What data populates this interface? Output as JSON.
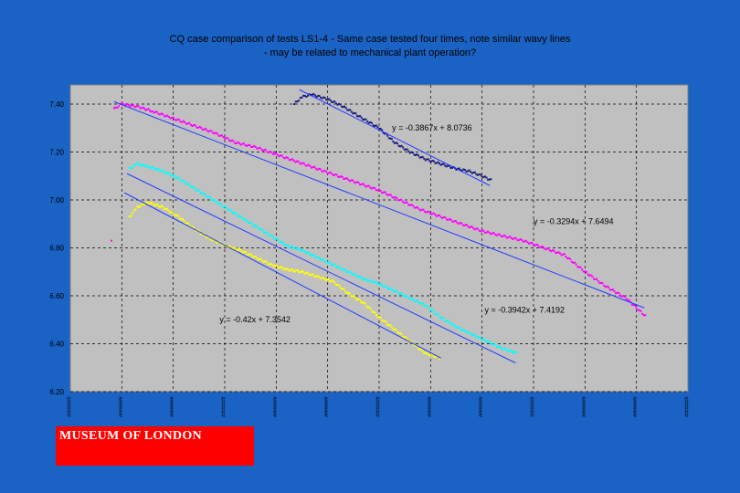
{
  "chart_data": {
    "type": "scatter",
    "title": "CQ case comparison of tests LS1-4 - Same case tested four times, note similar wavy lines",
    "subtitle": "- may be related to mechanical plant operation?",
    "xlabel": "",
    "ylabel": "",
    "ylim": [
      6.2,
      7.48
    ],
    "xlim": [
      0,
      12
    ],
    "yticks": [
      "7.40",
      "7.20",
      "7.00",
      "6.80",
      "6.60",
      "6.40",
      "6.20"
    ],
    "ytick_values": [
      7.4,
      7.2,
      7.0,
      6.8,
      6.6,
      6.4,
      6.2
    ],
    "xtick_values": [
      0,
      1,
      2,
      3,
      4,
      5,
      6,
      7,
      8,
      9,
      10,
      11,
      12
    ],
    "xtick_label": "########",
    "grid": true,
    "legend": "none",
    "plot_background": "#c0c0c0",
    "series": [
      {
        "color": "#1a1a7e",
        "x": [
          4.35,
          4.5,
          4.7,
          5.0,
          5.3,
          5.6,
          6.0,
          6.3,
          6.6,
          6.9,
          7.2,
          7.5,
          7.75,
          8.0,
          8.2
        ],
        "y": [
          7.4,
          7.43,
          7.44,
          7.42,
          7.39,
          7.35,
          7.3,
          7.24,
          7.2,
          7.17,
          7.15,
          7.13,
          7.12,
          7.1,
          7.08
        ]
      },
      {
        "color": "#ff00ff",
        "x": [
          0.85,
          1.0,
          1.3,
          1.6,
          2.0,
          2.4,
          2.8,
          3.2,
          3.6,
          4.0,
          4.4,
          4.8,
          5.2,
          5.6,
          6.0,
          6.4,
          6.8,
          7.2,
          7.6,
          8.0,
          8.4,
          8.8,
          9.2,
          9.6,
          10.0,
          10.4,
          10.8,
          11.2
        ],
        "y": [
          7.38,
          7.4,
          7.39,
          7.37,
          7.34,
          7.31,
          7.28,
          7.24,
          7.22,
          7.19,
          7.16,
          7.13,
          7.1,
          7.07,
          7.04,
          7.0,
          6.96,
          6.93,
          6.9,
          6.87,
          6.85,
          6.83,
          6.8,
          6.77,
          6.7,
          6.64,
          6.59,
          6.51
        ]
      },
      {
        "color": "#00ffff",
        "x": [
          1.15,
          1.3,
          1.5,
          1.8,
          2.1,
          2.4,
          2.7,
          3.0,
          3.3,
          3.6,
          3.9,
          4.2,
          4.5,
          4.8,
          5.1,
          5.4,
          5.7,
          6.0,
          6.3,
          6.6,
          6.9,
          7.2,
          7.5,
          7.8,
          8.1,
          8.4,
          8.7
        ],
        "y": [
          7.13,
          7.15,
          7.14,
          7.12,
          7.09,
          7.05,
          7.01,
          6.97,
          6.93,
          6.89,
          6.85,
          6.81,
          6.79,
          6.76,
          6.73,
          6.7,
          6.67,
          6.65,
          6.62,
          6.59,
          6.56,
          6.51,
          6.47,
          6.44,
          6.41,
          6.38,
          6.36
        ]
      },
      {
        "color": "#ffff00",
        "x": [
          1.15,
          1.3,
          1.5,
          1.8,
          2.1,
          2.4,
          2.7,
          3.0,
          3.3,
          3.6,
          3.9,
          4.2,
          4.5,
          4.8,
          5.1,
          5.4,
          5.7,
          6.0,
          6.3,
          6.6,
          6.9,
          7.2
        ],
        "y": [
          6.93,
          6.97,
          6.99,
          6.97,
          6.93,
          6.88,
          6.84,
          6.81,
          6.79,
          6.76,
          6.73,
          6.71,
          6.7,
          6.68,
          6.66,
          6.61,
          6.57,
          6.51,
          6.46,
          6.41,
          6.36,
          6.34
        ]
      }
    ],
    "outlier_point": {
      "x": 0.8,
      "y": 6.83,
      "color": "#ff00ff"
    },
    "trendlines": [
      {
        "color": "#1f3cff",
        "x": [
          4.45,
          8.15
        ],
        "y": [
          7.46,
          7.06
        ],
        "equation": "y = -0.3867x + 8.0736"
      },
      {
        "color": "#1f3cff",
        "x": [
          0.85,
          11.15
        ],
        "y": [
          7.41,
          6.55
        ],
        "equation": "y = -0.3294x + 7.6494"
      },
      {
        "color": "#1f3cff",
        "x": [
          1.1,
          8.65
        ],
        "y": [
          7.11,
          6.32
        ],
        "equation": "y = -0.3942x + 7.4192"
      },
      {
        "color": "#1f3cff",
        "x": [
          1.05,
          7.2
        ],
        "y": [
          7.03,
          6.34
        ],
        "equation": "y = -0.42x + 7.3542"
      }
    ],
    "annotations": [
      {
        "text": "y = -0.3867x + 8.0736",
        "x": 6.25,
        "y": 7.29
      },
      {
        "text": "y = -0.3294x + 7.6494",
        "x": 9.0,
        "y": 6.9
      },
      {
        "text": "y = -0.3942x + 7.4192",
        "x": 8.05,
        "y": 6.53
      },
      {
        "text": "y = -0.42x + 7.3542",
        "x": 2.9,
        "y": 6.49
      }
    ]
  },
  "logo": {
    "text": "MUSEUM OF LONDON"
  }
}
